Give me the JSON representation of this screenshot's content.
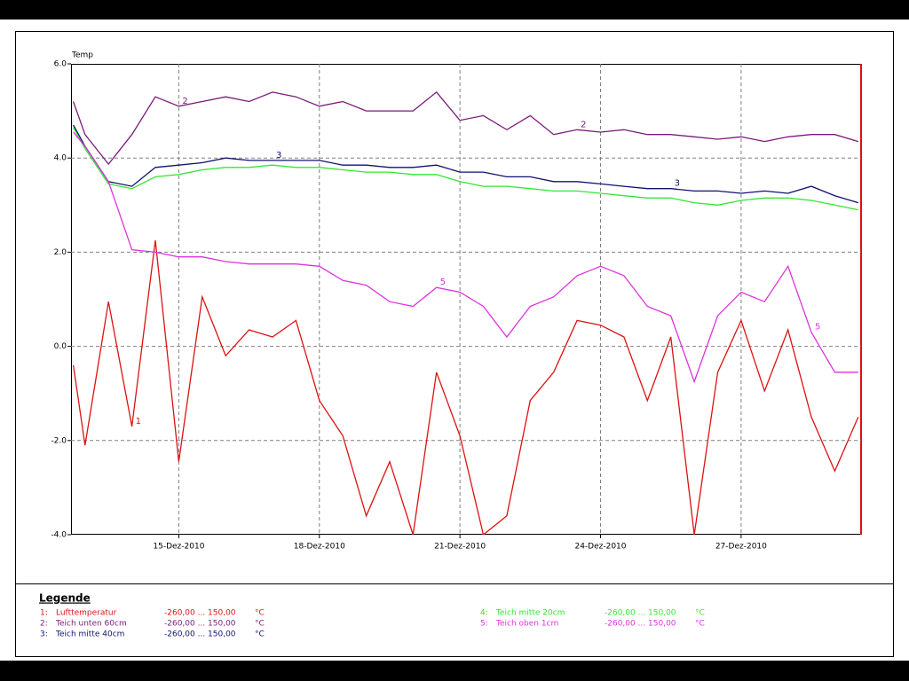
{
  "chart_data": {
    "type": "line",
    "y_label": "Temp",
    "legend_title": "Legende",
    "x": [
      12.75,
      13,
      13.5,
      14,
      14.5,
      15,
      15.5,
      16,
      16.5,
      17,
      17.5,
      18,
      18.5,
      19,
      19.5,
      20,
      20.5,
      21,
      21.5,
      22,
      22.5,
      23,
      23.5,
      24,
      24.5,
      25,
      25.5,
      26,
      26.5,
      27,
      27.5,
      28,
      28.5,
      29,
      29.5
    ],
    "xlim": [
      12.7,
      29.56
    ],
    "xticks": [
      {
        "value": 15,
        "label": "15-Dez-2010"
      },
      {
        "value": 18,
        "label": "18-Dez-2010"
      },
      {
        "value": 21,
        "label": "21-Dez-2010"
      },
      {
        "value": 24,
        "label": "24-Dez-2010"
      },
      {
        "value": 27,
        "label": "27-Dez-2010"
      }
    ],
    "ylim": [
      -4,
      6
    ],
    "yticks": [
      {
        "value": 6,
        "label": "6.0"
      },
      {
        "value": 4,
        "label": "4.0"
      },
      {
        "value": 2,
        "label": "2.0"
      },
      {
        "value": 0,
        "label": "0.0"
      },
      {
        "value": -2,
        "label": "-2.0"
      },
      {
        "value": -4,
        "label": "-4.0"
      }
    ],
    "grid": true,
    "series": [
      {
        "name": "Lufttemperatur",
        "legend_key": "1:",
        "curve_label": "1",
        "range": "-260,00 ... 150,00",
        "unit": "°C",
        "color": "#dd1111",
        "values": [
          -0.4,
          -2.1,
          0.95,
          -1.7,
          2.25,
          -2.45,
          1.05,
          -0.2,
          0.35,
          0.2,
          0.55,
          -1.15,
          -1.9,
          -3.6,
          -2.45,
          -4,
          -0.55,
          -1.9,
          -4,
          -3.6,
          -1.15,
          -0.55,
          0.55,
          0.45,
          0.2,
          -1.15,
          0.2,
          -4,
          -0.55,
          0.55,
          -0.95,
          0.35,
          -1.5,
          -2.65,
          -1.5
        ]
      },
      {
        "name": "Teich unten 60cm",
        "legend_key": "2:",
        "curve_label": "2",
        "range": "-260,00 ... 150,00",
        "unit": "°C",
        "color": "#7a1a7a",
        "values": [
          5.2,
          4.5,
          3.87,
          4.5,
          5.3,
          5.1,
          5.2,
          5.3,
          5.2,
          5.4,
          5.3,
          5.1,
          5.2,
          5.0,
          5.0,
          5.0,
          5.4,
          4.8,
          4.9,
          4.6,
          4.9,
          4.5,
          4.6,
          4.55,
          4.6,
          4.5,
          4.5,
          4.45,
          4.4,
          4.45,
          4.35,
          4.45,
          4.5,
          4.5,
          4.35
        ]
      },
      {
        "name": "Teich mitte 40cm",
        "legend_key": "3:",
        "curve_label": "3",
        "range": "-260,00 ... 150,00",
        "unit": "°C",
        "color": "#101070",
        "values": [
          4.7,
          4.25,
          3.5,
          3.4,
          3.8,
          3.85,
          3.9,
          4.0,
          3.95,
          3.95,
          3.95,
          3.95,
          3.85,
          3.85,
          3.8,
          3.8,
          3.85,
          3.7,
          3.7,
          3.6,
          3.6,
          3.5,
          3.5,
          3.45,
          3.4,
          3.35,
          3.35,
          3.3,
          3.3,
          3.25,
          3.3,
          3.25,
          3.4,
          3.2,
          3.05
        ]
      },
      {
        "name": "Teich mitte 20cm",
        "legend_key": "4:",
        "curve_label": "4",
        "range": "-260,00 ... 150,00",
        "unit": "°C",
        "color": "#33e633",
        "values": [
          4.65,
          4.2,
          3.45,
          3.35,
          3.6,
          3.65,
          3.75,
          3.8,
          3.8,
          3.85,
          3.8,
          3.8,
          3.75,
          3.7,
          3.7,
          3.65,
          3.65,
          3.5,
          3.4,
          3.4,
          3.35,
          3.3,
          3.3,
          3.25,
          3.2,
          3.15,
          3.15,
          3.05,
          3.0,
          3.1,
          3.15,
          3.15,
          3.1,
          3.0,
          2.9
        ]
      },
      {
        "name": "Teich oben 1cm",
        "legend_key": "5:",
        "curve_label": "5",
        "range": "-260,00 ... 150,00",
        "unit": "°C",
        "color": "#dd33dd",
        "values": [
          4.55,
          4.25,
          3.5,
          2.05,
          2.0,
          1.9,
          1.9,
          1.8,
          1.75,
          1.75,
          1.75,
          1.7,
          1.4,
          1.3,
          0.95,
          0.85,
          1.25,
          1.15,
          0.85,
          0.2,
          0.85,
          1.05,
          1.5,
          1.7,
          1.5,
          0.85,
          0.65,
          -0.75,
          0.65,
          1.15,
          0.95,
          1.7,
          0.3,
          -0.55,
          -0.55
        ]
      }
    ]
  }
}
